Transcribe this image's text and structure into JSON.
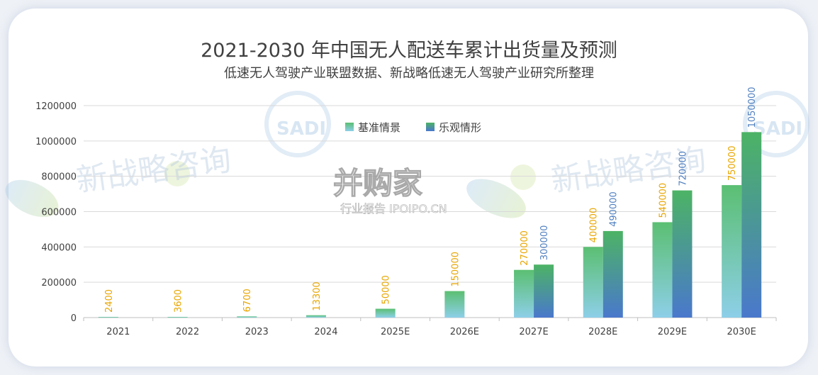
{
  "title": "2021-2030 年中国无人配送车累计出货量及预测",
  "subtitle": "低速无人驾驶产业联盟数据、新战略低速无人驾驶产业研究所整理",
  "watermarks": {
    "brand_cn": "新战略咨询",
    "logo_text": "SADI",
    "site_cn": "并购家",
    "site_sub": "行业报告 IPOIPO.CN"
  },
  "colors": {
    "baseline_top": "#5bbf72",
    "baseline_bottom": "#8dcfe8",
    "optimistic_top": "#4cb365",
    "optimistic_bottom": "#4a78cc",
    "label_baseline": "#e8a500",
    "label_optimistic": "#4f7fbf",
    "grid": "#d9d9d9",
    "text": "#404040"
  },
  "chart_data": {
    "type": "bar",
    "categories": [
      "2021",
      "2022",
      "2023",
      "2024",
      "2025E",
      "2026E",
      "2027E",
      "2028E",
      "2029E",
      "2030E"
    ],
    "series": [
      {
        "name": "基准情景",
        "values": [
          2400,
          3600,
          6700,
          13300,
          50000,
          150000,
          270000,
          400000,
          540000,
          750000
        ]
      },
      {
        "name": "乐观情形",
        "values": [
          null,
          null,
          null,
          null,
          null,
          null,
          300000,
          490000,
          720000,
          1050000
        ]
      }
    ],
    "yticks": [
      "0",
      "200000",
      "400000",
      "600000",
      "800000",
      "1000000",
      "1200000"
    ],
    "ylim": [
      0,
      1200000
    ],
    "grid": true,
    "legend": "top-center"
  }
}
